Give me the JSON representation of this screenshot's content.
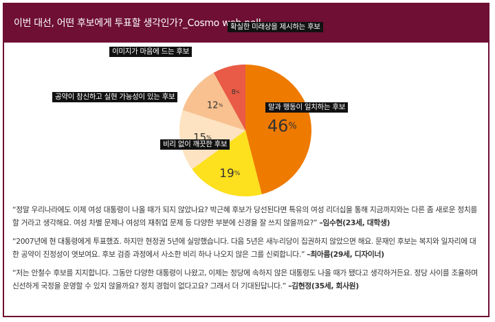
{
  "header": {
    "title": "이번 대선, 어떤 후보에게 투표할 생각인가?_Cosmo web poll"
  },
  "chart_data": {
    "type": "pie",
    "title": "이번 대선, 어떤 후보에게 투표할 생각인가?_Cosmo web poll",
    "slices": [
      {
        "label": "말과 행동이 일치하는 후보",
        "value": 46,
        "value_label": "46%",
        "color": "#ef7a00"
      },
      {
        "label": "비리 없이 깨끗한 후보",
        "value": 19,
        "value_label": "19%",
        "color": "#fde01e"
      },
      {
        "label": "공약이 참신하고 실현 가능성이 있는 후보",
        "value": 15,
        "value_label": "15%",
        "color": "#fde3c1"
      },
      {
        "label": "이미지가 마음에 드는 후보",
        "value": 12,
        "value_label": "12%",
        "color": "#f8c18f"
      },
      {
        "label": "확실한 미래상을 제시하는 후보",
        "value": 8,
        "value_label": "8%",
        "color": "#e95b46"
      }
    ]
  },
  "comments": [
    {
      "text": "“정말 우리나라에도 이제 여성 대통령이 나올 때가 되지 않았나요? 박근혜 후보가 당선된다면 특유의 여성 리더십을 통해 지금까지와는 다른 좀 새로운 정치를 할 거라고 생각해요. 여성 차별 문제나 여성의 재취업 문제 등 다양한 부분에 신경을 잘 쓰지 않을까요?” ",
      "author": "–임수현(23세, 대학생)"
    },
    {
      "text": "“2007년에 현 대통령에게 투표했죠. 하지만 현정권 5년에 실망했습니다. 다음 5년은 새누리당이 집권하지 않았으면 해요. 문재인 후보는 복지와 일자리에 대한 공약이 진정성이 엿보여요. 후보 검증 과정에서 사소한 비리 하나 나오지 않은 그를 신뢰합니다.” ",
      "author": "–최아름(29세, 디자이너)"
    },
    {
      "text": "“저는 안철수 후보를 지지합니다. 그동안 다양한 대통령이 나왔고, 이제는 정당에 속하지 않은 대통령도 나올 때가 됐다고 생각하거든요. 정당 사이를 조율하며 신선하게 국정을 운영할 수 있지 않을까요? 정치 경험이 없다고요? 그래서 더 기대된답니다.” ",
      "author": "–김현정(35세, 회사원)"
    }
  ]
}
